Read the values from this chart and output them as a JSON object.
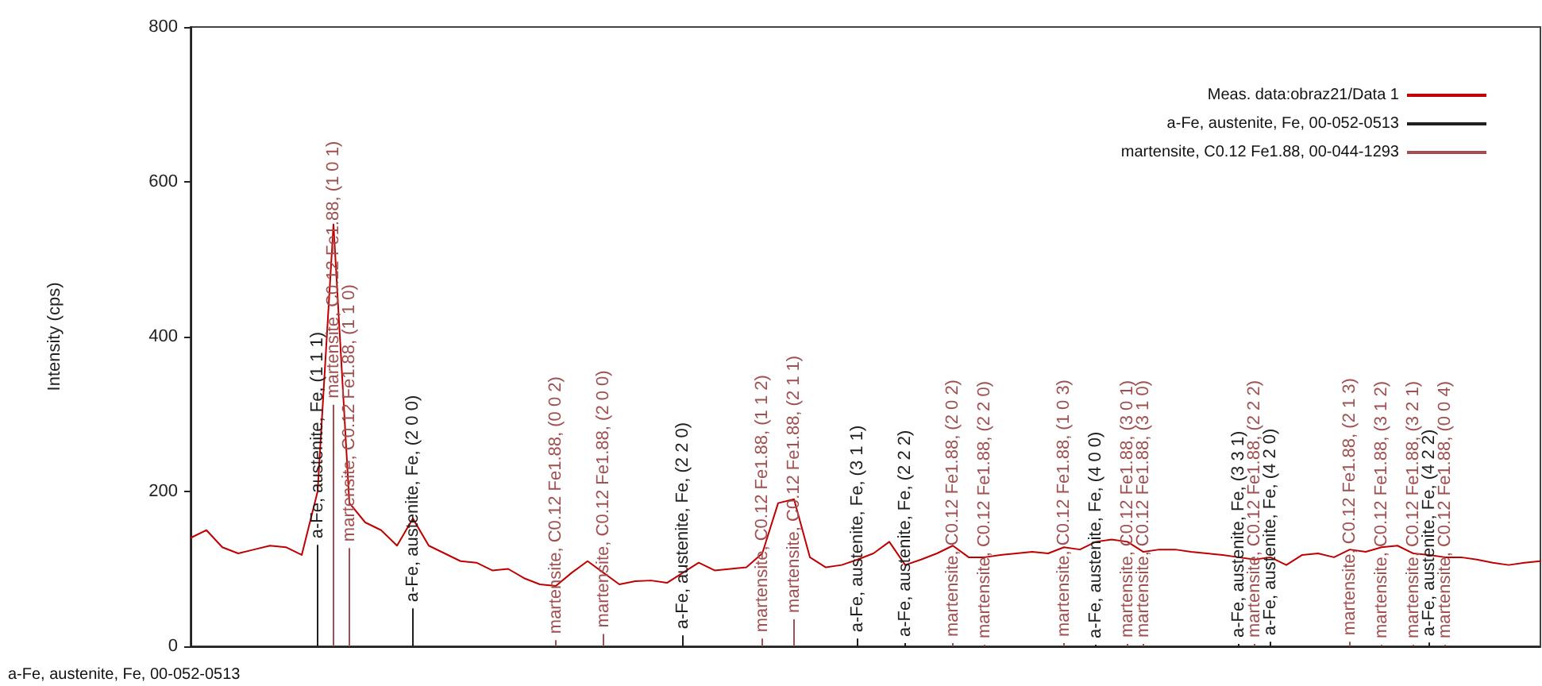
{
  "chart_data": {
    "type": "line",
    "ylabel": "Intensity (cps)",
    "ylim": [
      0,
      800
    ],
    "yticks": [
      0,
      200,
      400,
      600,
      800
    ],
    "grid": false,
    "legend": "top right",
    "tick_labels": "y",
    "marker": "none",
    "line_style": "solid",
    "annotations": [
      "a-Fe, austenite, Fe, 00-052-0513"
    ],
    "categories": [
      null,
      null,
      null,
      null,
      null,
      null,
      null,
      null,
      null,
      null,
      null,
      null,
      null,
      null,
      null,
      null,
      null,
      null,
      null,
      null,
      null,
      null,
      null,
      null,
      null,
      null,
      null,
      null,
      null,
      null,
      null,
      null,
      null,
      null,
      null,
      null,
      null,
      null,
      null,
      null,
      null,
      null,
      null,
      null,
      null,
      null,
      null,
      null,
      null,
      null,
      null,
      null,
      null,
      null,
      null,
      null,
      null,
      null,
      null,
      null,
      null,
      null,
      null,
      null,
      null,
      null,
      null,
      null,
      null,
      null,
      null,
      null,
      null,
      null,
      null,
      null,
      null,
      null,
      null,
      null,
      null,
      null,
      null,
      null,
      null,
      null
    ],
    "series": [
      {
        "name": "Meas. data:obraz21/Data 1",
        "color": "#c00000",
        "values": [
          140,
          150,
          128,
          120,
          125,
          130,
          128,
          118,
          200,
          545,
          185,
          160,
          150,
          130,
          165,
          130,
          120,
          110,
          108,
          98,
          100,
          88,
          80,
          78,
          95,
          110,
          95,
          80,
          84,
          85,
          82,
          95,
          108,
          98,
          100,
          102,
          120,
          185,
          190,
          115,
          102,
          105,
          112,
          120,
          135,
          105,
          112,
          120,
          130,
          115,
          115,
          118,
          120,
          122,
          120,
          128,
          125,
          135,
          138,
          135,
          122,
          125,
          125,
          122,
          120,
          118,
          115,
          112,
          115,
          105,
          118,
          120,
          115,
          125,
          122,
          128,
          130,
          120,
          118,
          115,
          115,
          112,
          108,
          105,
          108,
          110
        ]
      },
      {
        "name": "a-Fe, austenite, Fe, 00-052-0513",
        "type": "bar",
        "color": "#202020",
        "values": [
          null,
          null,
          null,
          null,
          null,
          null,
          null,
          null,
          131,
          null,
          null,
          null,
          null,
          null,
          49,
          null,
          null,
          null,
          null,
          null,
          null,
          null,
          null,
          null,
          null,
          null,
          null,
          null,
          null,
          null,
          null,
          14,
          null,
          null,
          null,
          null,
          null,
          null,
          null,
          null,
          null,
          null,
          10,
          null,
          null,
          4,
          null,
          null,
          null,
          null,
          null,
          null,
          null,
          null,
          null,
          null,
          null,
          2,
          null,
          null,
          null,
          null,
          null,
          null,
          null,
          null,
          3,
          null,
          6,
          null,
          null,
          null,
          null,
          null,
          null,
          null,
          null,
          null,
          5,
          null,
          null,
          null,
          null,
          null,
          null,
          null
        ],
        "value_labels": [
          null,
          null,
          null,
          null,
          null,
          null,
          null,
          null,
          "a-Fe, austenite, Fe, (1 1 1)",
          null,
          null,
          null,
          null,
          null,
          "a-Fe, austenite, Fe, (2 0 0)",
          null,
          null,
          null,
          null,
          null,
          null,
          null,
          null,
          null,
          null,
          null,
          null,
          null,
          null,
          null,
          null,
          "a-Fe, austenite, Fe, (2 2 0)",
          null,
          null,
          null,
          null,
          null,
          null,
          null,
          null,
          null,
          null,
          "a-Fe, austenite, Fe, (3 1 1)",
          null,
          null,
          "a-Fe, austenite, Fe, (2 2 2)",
          null,
          null,
          null,
          null,
          null,
          null,
          null,
          null,
          null,
          null,
          null,
          "a-Fe, austenite, Fe, (4 0 0)",
          null,
          null,
          null,
          null,
          null,
          null,
          null,
          null,
          "a-Fe, austenite, Fe, (3 3 1)",
          null,
          "a-Fe, austenite, Fe, (4 2 0)",
          null,
          null,
          null,
          null,
          null,
          null,
          null,
          null,
          null,
          "a-Fe, austenite, Fe, (4 2 2)",
          null,
          null,
          null,
          null,
          null,
          null,
          null
        ]
      },
      {
        "name": "martensite, C0.12 Fe1.88, 00-044-1293",
        "type": "bar",
        "color": "#a05050",
        "values": [
          null,
          null,
          null,
          null,
          null,
          null,
          null,
          null,
          null,
          312,
          127,
          null,
          null,
          null,
          null,
          null,
          null,
          null,
          null,
          null,
          null,
          null,
          null,
          8,
          null,
          null,
          16,
          null,
          null,
          null,
          null,
          null,
          null,
          null,
          null,
          null,
          10,
          null,
          35,
          null,
          null,
          null,
          null,
          null,
          null,
          null,
          null,
          null,
          4,
          null,
          2,
          null,
          null,
          null,
          null,
          4,
          null,
          null,
          null,
          3,
          3,
          null,
          null,
          null,
          null,
          null,
          null,
          3,
          null,
          null,
          null,
          null,
          null,
          6,
          null,
          2,
          null,
          2,
          null,
          2,
          null,
          null,
          null,
          null,
          null,
          null
        ],
        "value_labels": [
          null,
          null,
          null,
          null,
          null,
          null,
          null,
          null,
          null,
          "martensite, C0.12 Fe1.88, (1 0 1)",
          "martensite, C0.12 Fe1.88, (1 1 0)",
          null,
          null,
          null,
          null,
          null,
          null,
          null,
          null,
          null,
          null,
          null,
          null,
          "martensite, C0.12 Fe1.88, (0 0 2)",
          null,
          null,
          "martensite, C0.12 Fe1.88, (2 0 0)",
          null,
          null,
          null,
          null,
          null,
          null,
          null,
          null,
          null,
          "martensite, C0.12 Fe1.88, (1 1 2)",
          null,
          "martensite, C0.12 Fe1.88, (2 1 1)",
          null,
          null,
          null,
          null,
          null,
          null,
          null,
          null,
          null,
          "martensite, C0.12 Fe1.88, (2 0 2)",
          null,
          "martensite, C0.12 Fe1.88, (2 2 0)",
          null,
          null,
          null,
          null,
          "martensite, C0.12 Fe1.88, (1 0 3)",
          null,
          null,
          null,
          "martensite, C0.12 Fe1.88, (3 0 1)",
          "martensite, C0.12 Fe1.88, (3 1 0)",
          null,
          null,
          null,
          null,
          null,
          null,
          "martensite, C0.12 Fe1.88, (2 2 2)",
          null,
          null,
          null,
          null,
          null,
          "martensite, C0.12 Fe1.88, (2 1 3)",
          null,
          "martensite, C0.12 Fe1.88, (3 1 2)",
          null,
          "martensite, C0.12 Fe1.88, (3 2 1)",
          null,
          "martensite, C0.12 Fe1.88, (0 0 4)",
          null,
          null,
          null,
          null,
          null,
          null
        ]
      }
    ]
  }
}
